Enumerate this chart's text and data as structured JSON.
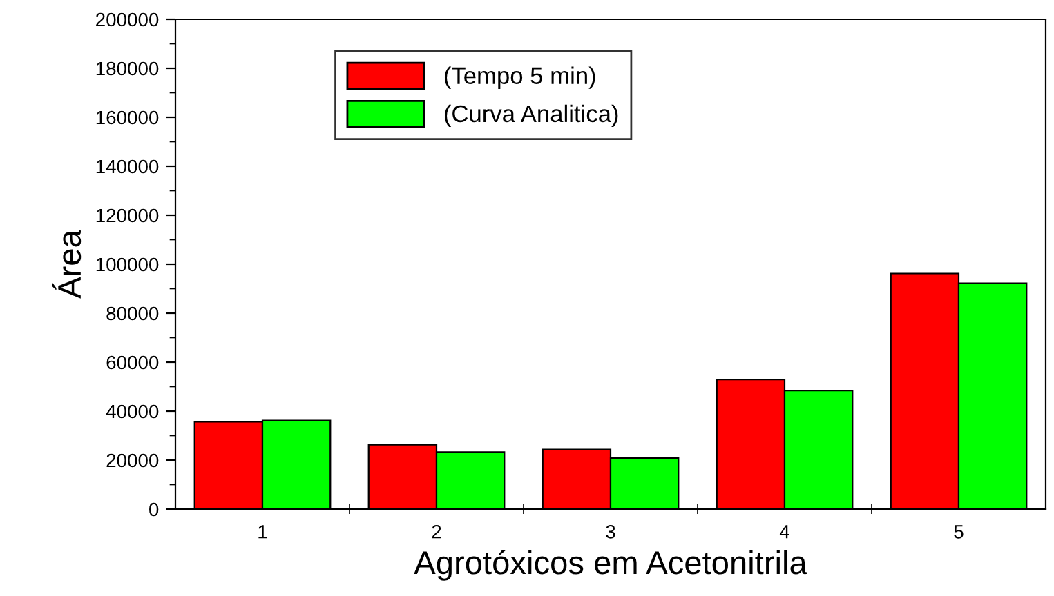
{
  "chart_data": {
    "type": "bar",
    "xlabel": "Agrotóxicos em Acetonitrila",
    "ylabel": "Área",
    "categories": [
      "1",
      "2",
      "3",
      "4",
      "5"
    ],
    "series": [
      {
        "name": "(Tempo 5 min)",
        "color": "#ff0000",
        "values": [
          35700,
          26300,
          24300,
          52900,
          96200
        ]
      },
      {
        "name": "(Curva Analitica)",
        "color": "#00ff00",
        "values": [
          36200,
          23300,
          20800,
          48400,
          92200
        ]
      }
    ],
    "ylim": [
      0,
      200000
    ],
    "yticks": [
      0,
      20000,
      40000,
      60000,
      80000,
      100000,
      120000,
      140000,
      160000,
      180000,
      200000
    ],
    "grid": false,
    "legend": "top left"
  }
}
